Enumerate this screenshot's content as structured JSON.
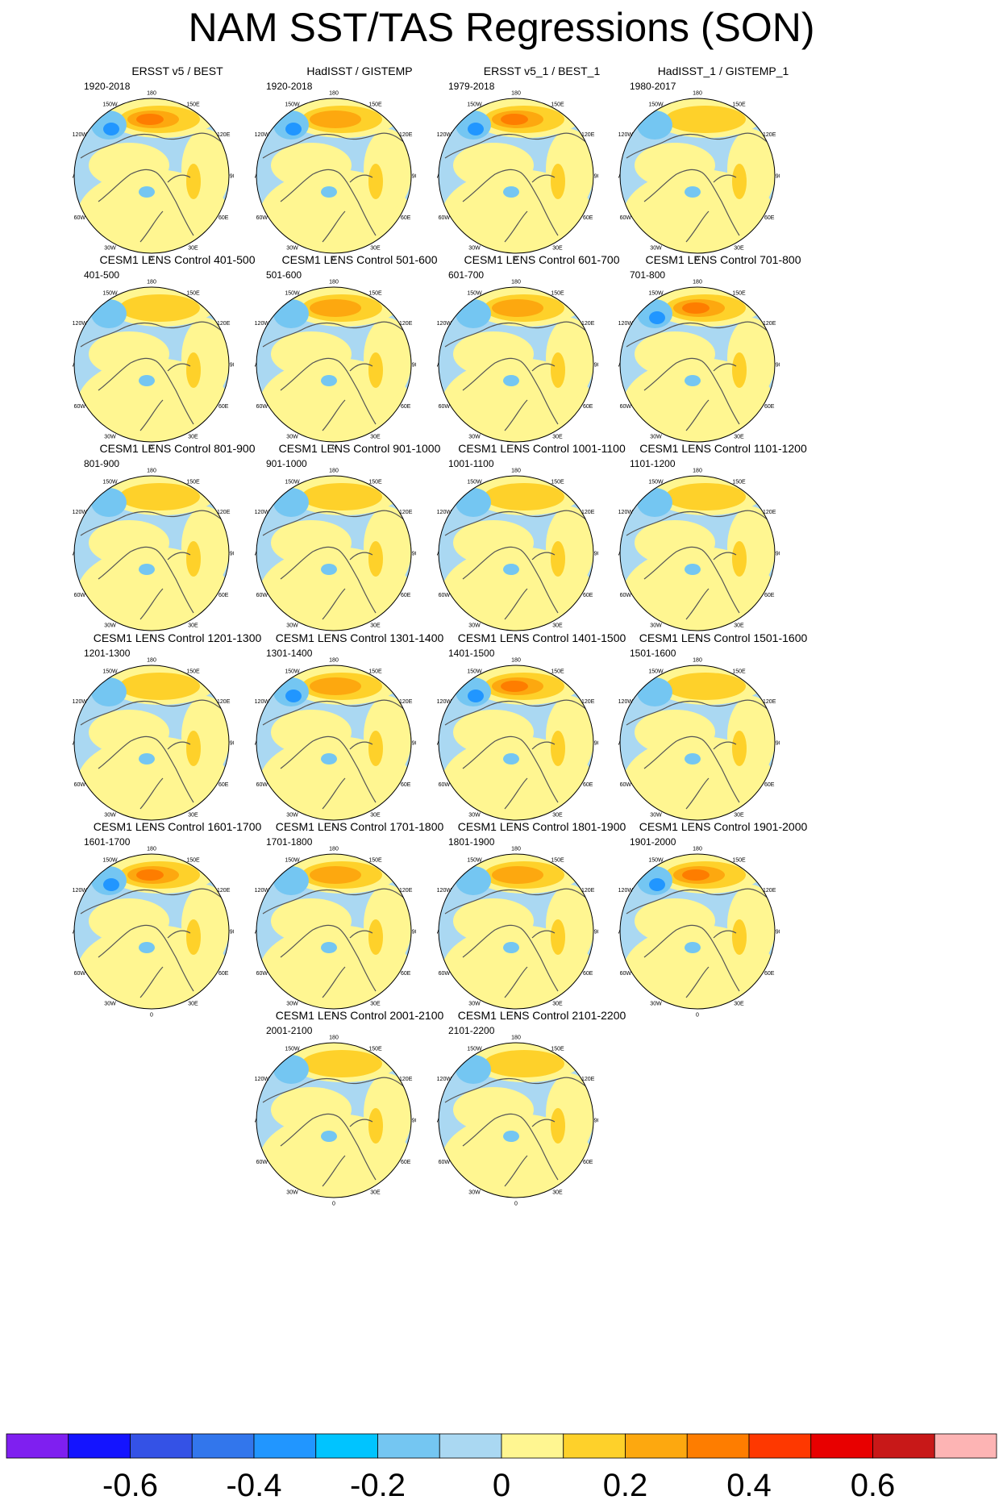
{
  "title": "NAM SST/TAS Regressions (SON)",
  "longitude_labels": [
    "180",
    "150E",
    "120E",
    "90E",
    "60E",
    "30E",
    "0",
    "30W",
    "60W",
    "90W",
    "120W",
    "150W"
  ],
  "panels": [
    {
      "title": "ERSST v5 / BEST",
      "period": "1920-2018",
      "row": 0,
      "col": 0,
      "strength": 1.3
    },
    {
      "title": "HadISST / GISTEMP",
      "period": "1920-2018",
      "row": 0,
      "col": 1,
      "strength": 1.0
    },
    {
      "title": "ERSST v5_1 / BEST_1",
      "period": "1979-2018",
      "row": 0,
      "col": 2,
      "strength": 1.2
    },
    {
      "title": "HadISST_1 / GISTEMP_1",
      "period": "1980-2017",
      "row": 0,
      "col": 3,
      "strength": 0.8
    },
    {
      "title": "CESM1 LENS Control 401-500",
      "period": "401-500",
      "row": 1,
      "col": 0,
      "strength": 0.7
    },
    {
      "title": "CESM1 LENS Control 501-600",
      "period": "501-600",
      "row": 1,
      "col": 1,
      "strength": 0.9
    },
    {
      "title": "CESM1 LENS Control 601-700",
      "period": "601-700",
      "row": 1,
      "col": 2,
      "strength": 0.9
    },
    {
      "title": "CESM1 LENS Control 701-800",
      "period": "701-800",
      "row": 1,
      "col": 3,
      "strength": 1.2
    },
    {
      "title": "CESM1 LENS Control 801-900",
      "period": "801-900",
      "row": 2,
      "col": 0,
      "strength": 0.8
    },
    {
      "title": "CESM1 LENS Control 901-1000",
      "period": "901-1000",
      "row": 2,
      "col": 1,
      "strength": 0.7
    },
    {
      "title": "CESM1 LENS Control 1001-1100",
      "period": "1001-1100",
      "row": 2,
      "col": 2,
      "strength": 0.6
    },
    {
      "title": "CESM1 LENS Control 1101-1200",
      "period": "1101-1200",
      "row": 2,
      "col": 3,
      "strength": 0.8
    },
    {
      "title": "CESM1 LENS Control 1201-1300",
      "period": "1201-1300",
      "row": 3,
      "col": 0,
      "strength": 0.6
    },
    {
      "title": "CESM1 LENS Control 1301-1400",
      "period": "1301-1400",
      "row": 3,
      "col": 1,
      "strength": 1.0
    },
    {
      "title": "CESM1 LENS Control 1401-1500",
      "period": "1401-1500",
      "row": 3,
      "col": 2,
      "strength": 1.3
    },
    {
      "title": "CESM1 LENS Control 1501-1600",
      "period": "1501-1600",
      "row": 3,
      "col": 3,
      "strength": 0.5
    },
    {
      "title": "CESM1 LENS Control 1601-1700",
      "period": "1601-1700",
      "row": 4,
      "col": 0,
      "strength": 1.4
    },
    {
      "title": "CESM1 LENS Control 1701-1800",
      "period": "1701-1800",
      "row": 4,
      "col": 1,
      "strength": 0.9
    },
    {
      "title": "CESM1 LENS Control 1801-1900",
      "period": "1801-1900",
      "row": 4,
      "col": 2,
      "strength": 0.9
    },
    {
      "title": "CESM1 LENS Control 1901-2000",
      "period": "1901-2000",
      "row": 4,
      "col": 3,
      "strength": 1.3
    },
    {
      "title": "CESM1 LENS Control 2001-2100",
      "period": "2001-2100",
      "row": 5,
      "col": 1,
      "strength": 0.6
    },
    {
      "title": "CESM1 LENS Control 2101-2200",
      "period": "2101-2200",
      "row": 5,
      "col": 2,
      "strength": 0.6
    }
  ],
  "colorbar": {
    "colors": [
      "#7f1ff0",
      "#1414ff",
      "#3452e6",
      "#3276ec",
      "#2196ff",
      "#00c4ff",
      "#74c6f2",
      "#aad8f2",
      "#fff691",
      "#fed12a",
      "#fda80f",
      "#fe7d00",
      "#fe3800",
      "#e80000",
      "#c81818",
      "#fdb4b4"
    ],
    "levels": [
      -0.7,
      -0.6,
      -0.5,
      -0.4,
      -0.3,
      -0.2,
      -0.1,
      0,
      0.1,
      0.2,
      0.3,
      0.4,
      0.5,
      0.6,
      0.7
    ],
    "tick_labels": [
      {
        "label": "-0.6",
        "value": -0.6
      },
      {
        "label": "-0.4",
        "value": -0.4
      },
      {
        "label": "-0.2",
        "value": -0.2
      },
      {
        "label": "0",
        "value": 0
      },
      {
        "label": "0.2",
        "value": 0.2
      },
      {
        "label": "0.4",
        "value": 0.4
      },
      {
        "label": "0.6",
        "value": 0.6
      }
    ]
  }
}
